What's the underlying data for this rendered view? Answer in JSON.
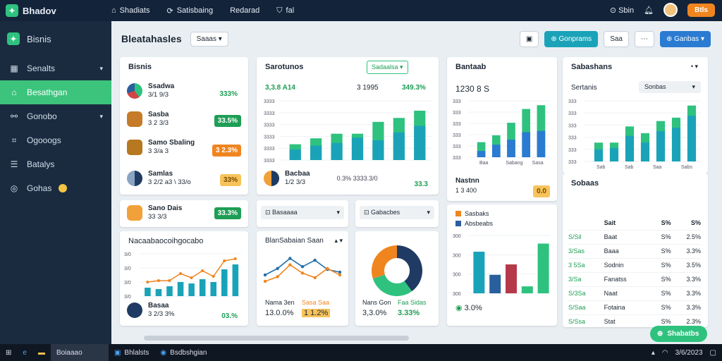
{
  "topbar": {
    "brand": "Bhadov",
    "nav": [
      "Shadiats",
      "Satisbaing",
      "Redarad",
      "fal"
    ],
    "nav_extra": "ꬷ",
    "search": "Sbin",
    "orange_btn": "Btls"
  },
  "sidebar": {
    "title": "Bisnis",
    "items": [
      {
        "label": "Senalts",
        "icon": "grid-icon",
        "chev": "▾"
      },
      {
        "label": "Besathgan",
        "icon": "home-icon",
        "active": true
      },
      {
        "label": "Gonobo",
        "icon": "link-icon",
        "chev": "▾"
      },
      {
        "label": "Ogooogs",
        "icon": "tag-icon"
      },
      {
        "label": "Batalys",
        "icon": "list-icon"
      },
      {
        "label": "Gohas",
        "icon": "globe-icon"
      }
    ]
  },
  "toolbar": {
    "title": "Bleatahasles",
    "select": "Saaas",
    "btn_teal": "Gonprams",
    "btn_sm": "Saa",
    "btn_blue": "Ganbas"
  },
  "card1": {
    "title": "Bisnis",
    "rows": [
      {
        "name": "Ssadwa",
        "sub": "3/1 9/3",
        "val": "333%"
      },
      {
        "name": "Sasba",
        "sub": "3 2 3/3",
        "val": "33.5%"
      },
      {
        "name": "Samo Sbaling",
        "sub": "3 3/a 3",
        "val": "3 2.3%"
      },
      {
        "name": "Samlas",
        "sub": "3 2/2 a3  \\ 33/o",
        "val": "33%"
      }
    ]
  },
  "card1b": {
    "name": "Sano Dais",
    "sub": "33 3/3",
    "val": "33.3%"
  },
  "card2": {
    "title": "Sarotunos",
    "dropdown": "Sadaalsa",
    "stat1": "3,3.8 A14",
    "stat2": "3 1995",
    "stat3": "349.3%",
    "yticks": [
      "3333",
      "3333",
      "3333",
      "3333",
      "3333",
      "3333"
    ],
    "foot_name": "Bacbaa",
    "foot_sub": "1/2 3/3",
    "foot_mid": "0.3%  3333.3/0",
    "foot_val": "33.3"
  },
  "card3": {
    "title": "Bantaab",
    "value": "1230 8 S",
    "xticks": [
      "Baa",
      "Sabang",
      "Sasa"
    ],
    "yticks": [
      "333",
      "333",
      "333",
      "333",
      "333",
      "333"
    ],
    "foot_title": "Nastnn",
    "foot_sub": "1 3 400",
    "foot_badge": "0.0"
  },
  "card4": {
    "title": "Sabashans",
    "sub": "Sertanis",
    "sel": "Sonbas",
    "xticks": [
      "Sab",
      "Sab",
      "Saa",
      "Sabs"
    ],
    "yticks": [
      "333",
      "333",
      "333",
      "333",
      "333",
      "333"
    ]
  },
  "card5": {
    "title": "Nacaabaocoihgocabo",
    "foot_name": "Basaa",
    "foot_sub": "3 2/3 3%",
    "foot_val": "03.%",
    "yticks": [
      "3/0",
      "3/0",
      "3/0",
      "3/0"
    ]
  },
  "card6": {
    "label": "Basaaaa"
  },
  "card7": {
    "label": "Gabacbes"
  },
  "card8": {
    "title": "BlanSabaian Saan",
    "a_lab": "Nama 3en",
    "a_val": "13.0.0%",
    "b_lab": "Sasa Saa",
    "b_val": "1 1.2%"
  },
  "card9": {
    "a_lab": "Nans Gon",
    "a_val": "3,3.0%",
    "b_lab": "Faa Sidas",
    "b_val": "3.33%"
  },
  "card10": {
    "legend1": "Sasbaks",
    "legend2": "Absbeabs",
    "yticks": [
      "300",
      "300",
      "300",
      "300"
    ],
    "foot": "3.0%"
  },
  "card11": {
    "title": "Sobaas",
    "head": [
      "Sait",
      "S%",
      "S%"
    ],
    "rows": [
      [
        "Baat",
        "S%",
        "2.5%"
      ],
      [
        "Baaa",
        "S%",
        "3.3%"
      ],
      [
        "Sodnin",
        "S%",
        "3.5%"
      ],
      [
        "Fanatss",
        "S%",
        "3.3%"
      ],
      [
        "Naat",
        "S%",
        "3.3%"
      ],
      [
        "Fotaina",
        "S%",
        "3.3%"
      ],
      [
        "Stat",
        "S%",
        "2.3%"
      ]
    ],
    "codes": [
      "S/Sil",
      "3/Sas",
      "3 5Sa",
      "3/Sa",
      "S/3Sa",
      "S/Saa",
      "S/Ssa"
    ]
  },
  "fab": "Shabatbs",
  "taskbar": {
    "t1": "Boiaaao",
    "t2": "Bhlalsts",
    "t3": "Bsdbshgian",
    "date": "3/6/2023"
  },
  "chart_data": [
    {
      "type": "bar",
      "title": "Sarotunos",
      "categories": [
        "1",
        "2",
        "3",
        "4",
        "5",
        "6",
        "7"
      ],
      "series": [
        {
          "values": [
            24,
            33,
            40,
            40,
            58,
            64,
            75
          ]
        },
        {
          "values": [
            16,
            22,
            26,
            34,
            30,
            42,
            52
          ]
        }
      ]
    },
    {
      "type": "bar",
      "title": "Bantaab",
      "categories": [
        "1",
        "2",
        "3",
        "4",
        "5"
      ],
      "series": [
        {
          "values": [
            24,
            35,
            55,
            77,
            83
          ]
        },
        {
          "values": [
            10,
            20,
            28,
            40,
            42
          ]
        }
      ]
    },
    {
      "type": "bar",
      "title": "Sabashans",
      "categories": [
        "1",
        "2",
        "3",
        "4",
        "5",
        "6",
        "7"
      ],
      "series": [
        {
          "values": [
            28,
            28,
            52,
            42,
            60,
            65,
            83
          ]
        },
        {
          "values": [
            18,
            20,
            38,
            28,
            45,
            50,
            68
          ]
        }
      ]
    },
    {
      "type": "bar",
      "title": "Nacaabaocoihgocabo",
      "categories": [
        "1",
        "2",
        "3",
        "4",
        "5",
        "6",
        "7",
        "8",
        "9"
      ],
      "values": [
        12,
        10,
        14,
        20,
        18,
        24,
        20,
        38,
        45
      ]
    },
    {
      "type": "line",
      "title": "BlanSabaian Saan",
      "series": [
        {
          "values": [
            34,
            48,
            70,
            52,
            66,
            46,
            40
          ]
        },
        {
          "values": [
            20,
            30,
            56,
            38,
            28,
            48,
            34
          ]
        }
      ]
    },
    {
      "type": "bar",
      "title": "Sasbaks",
      "categories": [
        "1",
        "2",
        "3",
        "4",
        "5"
      ],
      "values": [
        72,
        32,
        50,
        12,
        86
      ]
    },
    {
      "type": "pie",
      "values": [
        40,
        30,
        30
      ]
    }
  ]
}
